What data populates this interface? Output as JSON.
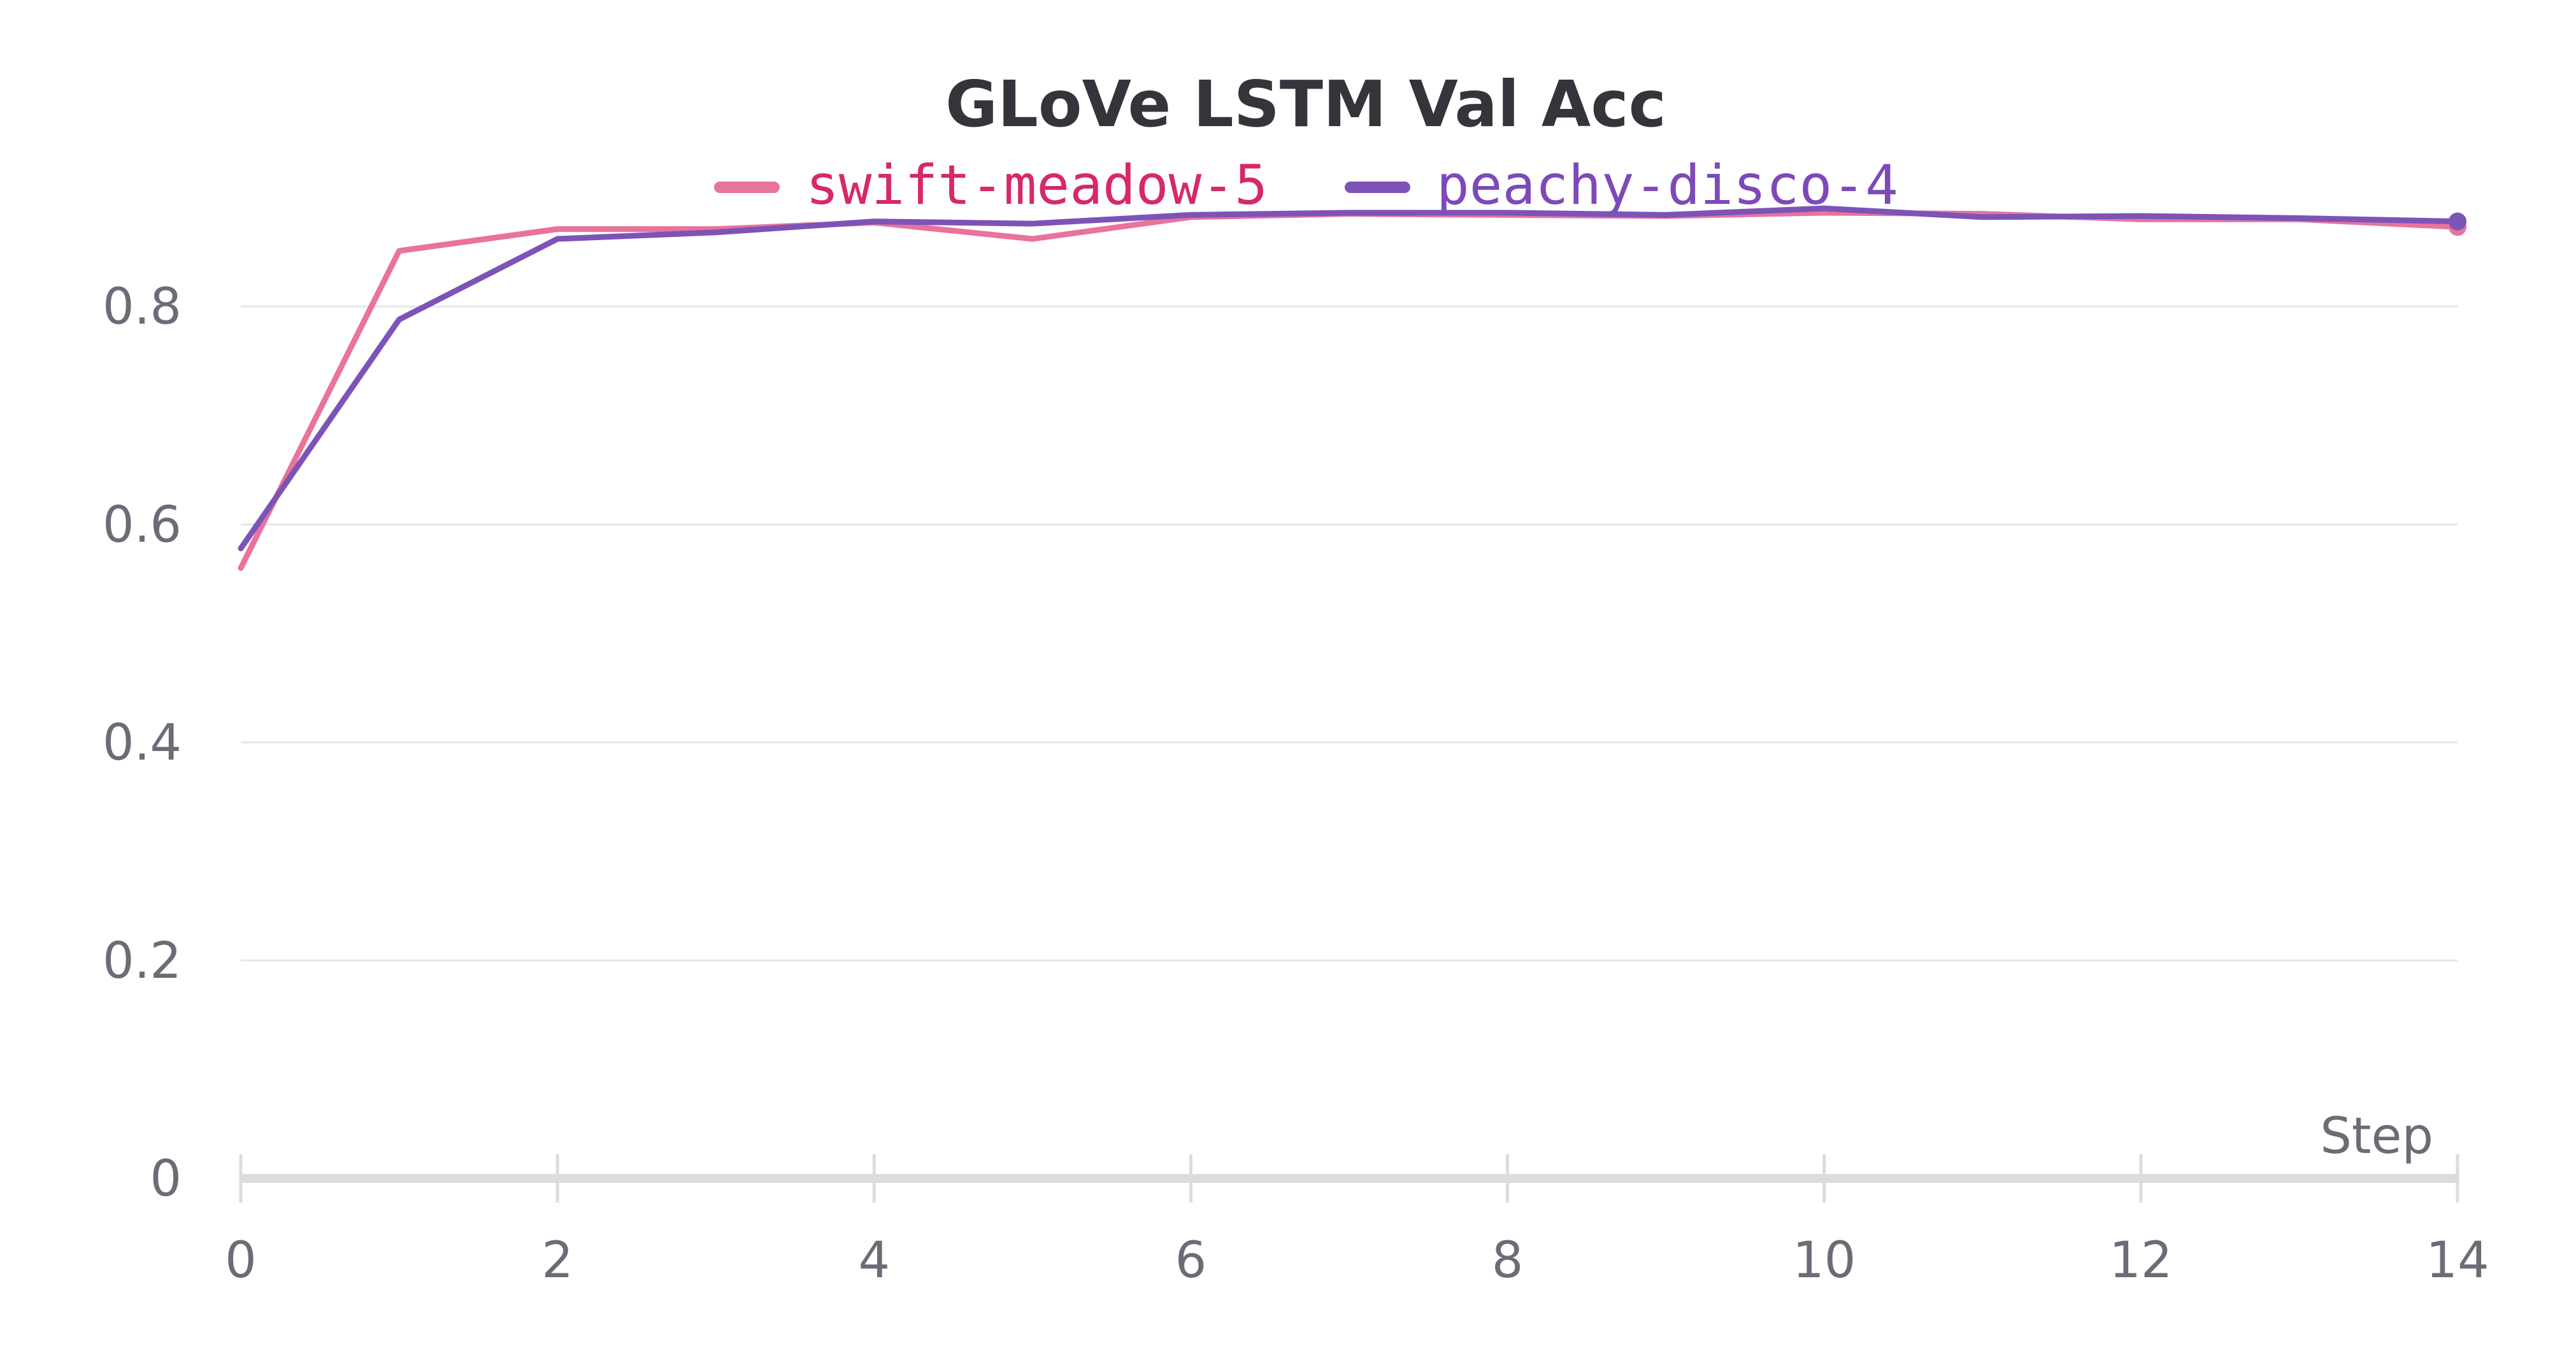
{
  "chart_data": {
    "type": "line",
    "title": "GLoVe LSTM Val Acc",
    "xlabel": "Step",
    "ylabel": "",
    "xlim": [
      0,
      14
    ],
    "ylim": [
      0,
      0.9
    ],
    "x_ticks": [
      0,
      2,
      4,
      6,
      8,
      10,
      12,
      14
    ],
    "y_ticks": [
      0,
      0.2,
      0.4,
      0.6,
      0.8
    ],
    "y_tick_labels": [
      "0",
      "0.2",
      "0.4",
      "0.6",
      "0.8"
    ],
    "grid": true,
    "legend_position": "top-center",
    "x": [
      0,
      1,
      2,
      3,
      4,
      5,
      6,
      7,
      8,
      9,
      10,
      11,
      12,
      13,
      14
    ],
    "series": [
      {
        "name": "swift-meadow-5",
        "color": "#e8739b",
        "label_color": "#d6286a",
        "values": [
          0.56,
          0.851,
          0.871,
          0.871,
          0.877,
          0.862,
          0.882,
          0.885,
          0.884,
          0.883,
          0.886,
          0.885,
          0.88,
          0.88,
          0.873
        ]
      },
      {
        "name": "peachy-disco-4",
        "color": "#7d53b8",
        "label_color": "#7d4ab8",
        "values": [
          0.578,
          0.788,
          0.862,
          0.868,
          0.878,
          0.876,
          0.884,
          0.886,
          0.886,
          0.884,
          0.89,
          0.882,
          0.883,
          0.881,
          0.878
        ]
      }
    ]
  }
}
